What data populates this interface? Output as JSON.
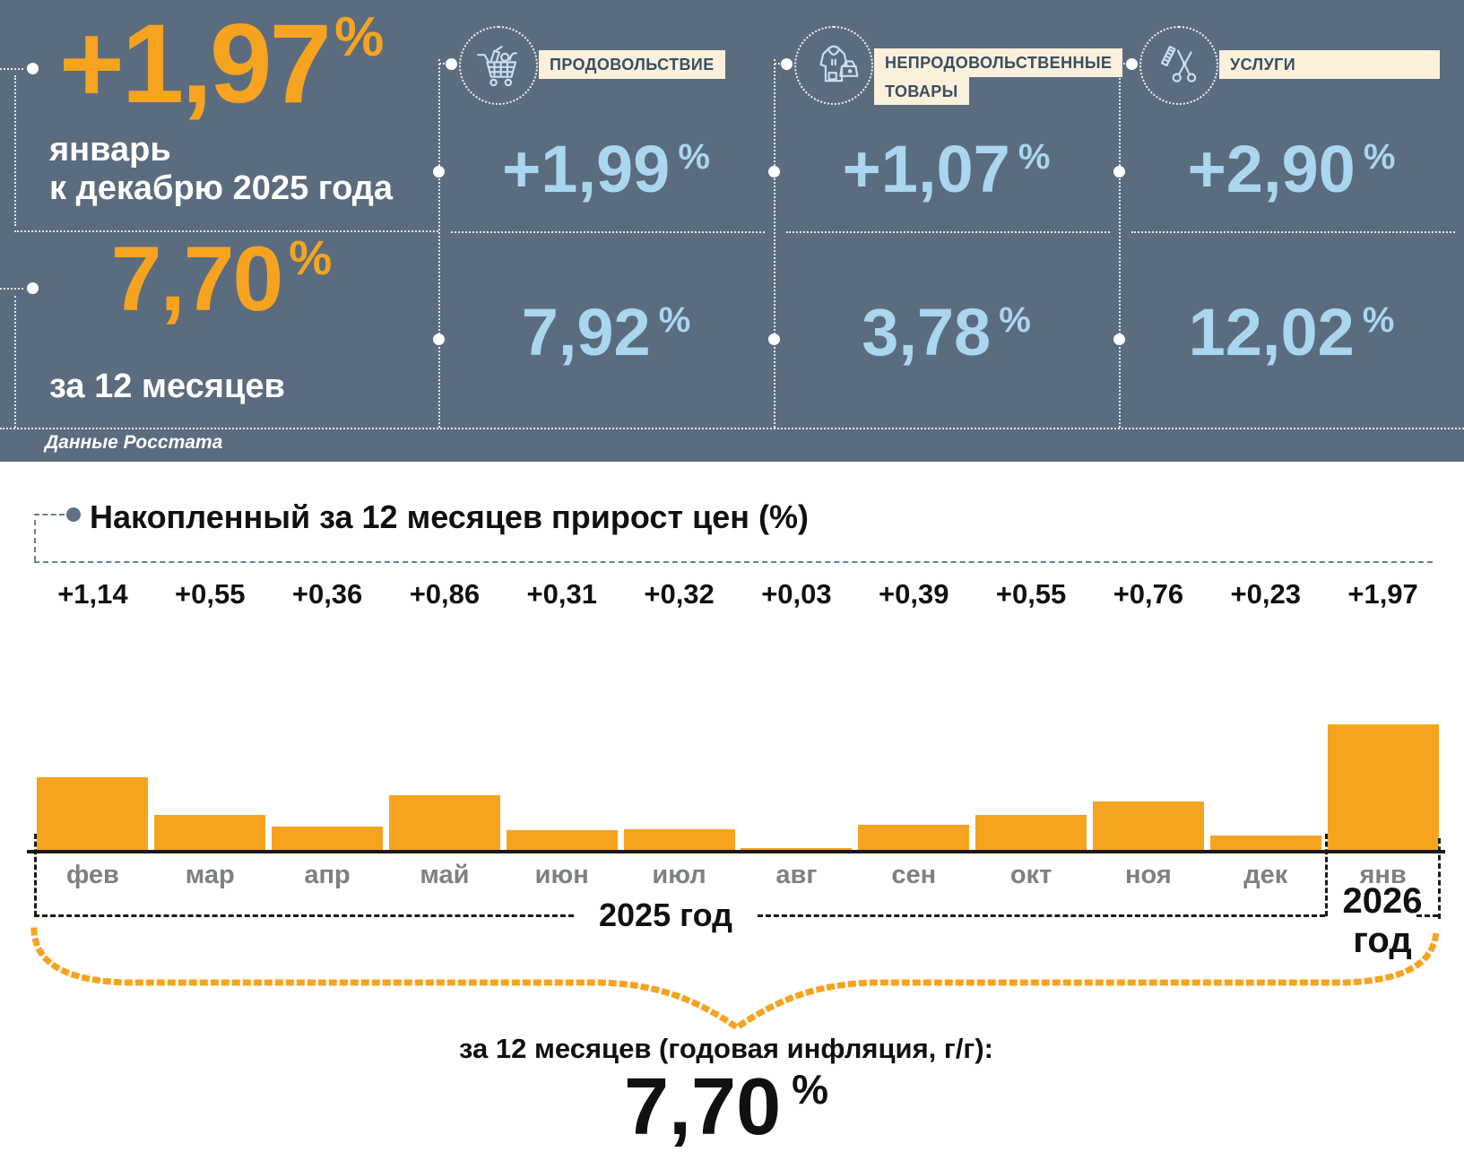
{
  "symbols": {
    "percent": "%"
  },
  "colors": {
    "header_bg": "#5B6C7F",
    "accent_orange": "#F6A41F",
    "value_blue": "#AAD6EF",
    "label_bg": "#FAF0DC",
    "label_text": "#3A4E61",
    "month_gray": "#7E8184"
  },
  "header": {
    "headline": {
      "value": "+1,97",
      "period_line1": "январь",
      "period_line2": "к декабрю 2025 года"
    },
    "annual": {
      "value": "7,70",
      "label": "за 12 месяцев"
    },
    "source": "Данные Росстата",
    "categories": [
      {
        "label": "ПРОДОВОЛЬСТВИЕ",
        "label_line1": "ПРОДОВОЛЬСТВИЕ",
        "label_line2": "",
        "icon": "shopping-cart",
        "monthly": "+1,99",
        "annual": "7,92"
      },
      {
        "label": "НЕПРОДОВОЛЬСТВЕННЫЕ ТОВАРЫ",
        "label_line1": "НЕПРОДОВОЛЬСТВЕННЫЕ",
        "label_line2": "ТОВАРЫ",
        "icon": "clothing-and-bag",
        "monthly": "+1,07",
        "annual": "3,78"
      },
      {
        "label": "УСЛУГИ",
        "label_line1": "УСЛУГИ",
        "label_line2": "",
        "icon": "scissors-and-comb",
        "monthly": "+2,90",
        "annual": "12,02"
      }
    ]
  },
  "chart_data": {
    "type": "bar",
    "title": "Накопленный за 12 месяцев прирост цен (%)",
    "categories": [
      "фев",
      "мар",
      "апр",
      "май",
      "июн",
      "июл",
      "авг",
      "сен",
      "окт",
      "ноя",
      "дек",
      "янв"
    ],
    "values": [
      1.14,
      0.55,
      0.36,
      0.86,
      0.31,
      0.32,
      0.03,
      0.39,
      0.55,
      0.76,
      0.23,
      1.97
    ],
    "value_labels": [
      "+1,14",
      "+0,55",
      "+0,36",
      "+0,86",
      "+0,31",
      "+0,32",
      "+0,03",
      "+0,39",
      "+0,55",
      "+0,76",
      "+0,23",
      "+1,97"
    ],
    "bar_color": "#F6A41F",
    "ylim": [
      0,
      2.0
    ],
    "grid": false,
    "legend": false,
    "x_axis_groups": [
      {
        "label": "2025 год",
        "span": "фев–дек"
      },
      {
        "label": "2026 год",
        "span": "янв"
      }
    ],
    "annotation": {
      "label": "за 12 месяцев (годовая инфляция, г/г):",
      "value": "7,70",
      "unit": "%"
    }
  },
  "footer": {
    "year_left": "2025 год",
    "year_right_line1": "2026",
    "year_right_line2": "год"
  }
}
